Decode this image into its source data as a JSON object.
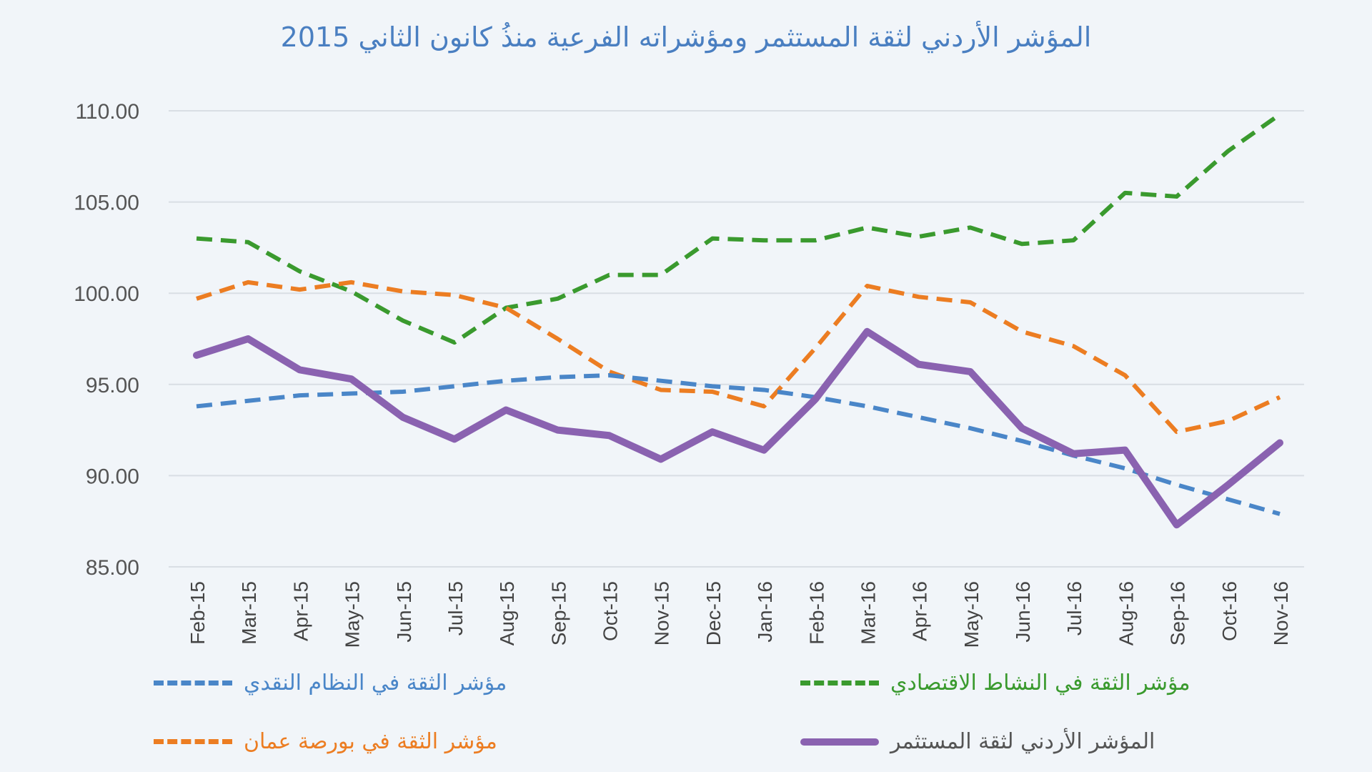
{
  "chart_data": {
    "type": "line",
    "title": "المؤشر الأردني لثقة المستثمر ومؤشراته الفرعية منذُ كانون الثاني 2015",
    "xlabel": "",
    "ylabel": "",
    "ylim": [
      85,
      110
    ],
    "yticks": [
      "110.00",
      "105.00",
      "100.00",
      "95.00",
      "90.00",
      "85.00"
    ],
    "grid": true,
    "legend_position": "bottom",
    "categories": [
      "Feb-15",
      "Mar-15",
      "Apr-15",
      "May-15",
      "Jun-15",
      "Jul-15",
      "Aug-15",
      "Sep-15",
      "Oct-15",
      "Nov-15",
      "Dec-15",
      "Jan-16",
      "Feb-16",
      "Mar-16",
      "Apr-16",
      "May-16",
      "Jun-16",
      "Jul-16",
      "Aug-16",
      "Sep-16",
      "Oct-16",
      "Nov-16"
    ],
    "series": [
      {
        "name": "مؤشر الثقة في النشاط الاقتصادي",
        "color": "#3a9a2e",
        "style": "dashed",
        "values": [
          103.0,
          102.8,
          101.2,
          100.1,
          98.5,
          97.3,
          99.2,
          99.7,
          101.0,
          101.0,
          103.0,
          102.9,
          102.9,
          103.6,
          103.1,
          103.6,
          102.7,
          102.9,
          105.5,
          105.3,
          107.8,
          109.8
        ]
      },
      {
        "name": "مؤشر الثقة في بورصة عمان",
        "color": "#ec7d22",
        "style": "dashed",
        "values": [
          99.7,
          100.6,
          100.2,
          100.6,
          100.1,
          99.9,
          99.2,
          97.5,
          95.7,
          94.7,
          94.6,
          93.8,
          97.0,
          100.4,
          99.8,
          99.5,
          97.9,
          97.1,
          95.5,
          92.4,
          93.0,
          94.3
        ]
      },
      {
        "name": "مؤشر الثقة في النظام النقدي",
        "color": "#4a86c8",
        "style": "dashed",
        "values": [
          93.8,
          94.1,
          94.4,
          94.5,
          94.6,
          94.9,
          95.2,
          95.4,
          95.5,
          95.2,
          94.9,
          94.7,
          94.3,
          93.8,
          93.2,
          92.6,
          91.9,
          91.1,
          90.4,
          89.5,
          88.7,
          87.9
        ]
      },
      {
        "name": "المؤشر الأردني لثقة المستثمر",
        "color": "#8a62b0",
        "style": "solid",
        "values": [
          96.6,
          97.5,
          95.8,
          95.3,
          93.2,
          92.0,
          93.6,
          92.5,
          92.2,
          90.9,
          92.4,
          91.4,
          94.2,
          97.9,
          96.1,
          95.7,
          92.6,
          91.2,
          91.4,
          87.3,
          89.5,
          91.8
        ]
      }
    ]
  }
}
